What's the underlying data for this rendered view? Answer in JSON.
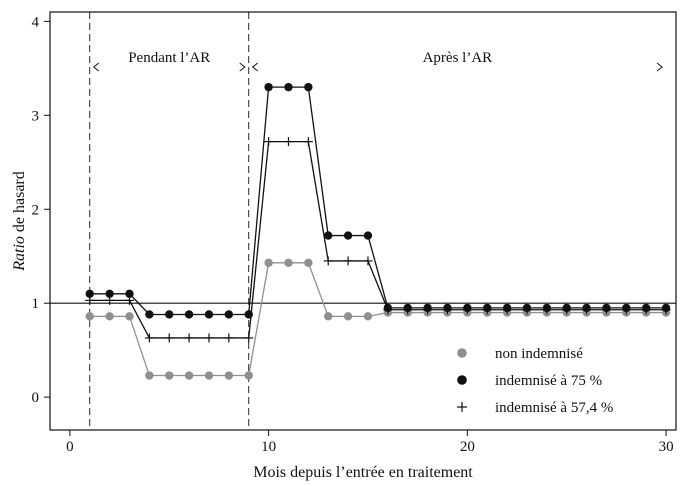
{
  "chart_data": {
    "type": "line",
    "xlabel": "Mois depuis l’entrée en traitement",
    "ylabel_italic": "Ratio",
    "ylabel_rest": " de hasard",
    "xlim": [
      -1,
      30.5
    ],
    "ylim": [
      -0.35,
      4.1
    ],
    "x_ticks": [
      0,
      10,
      20,
      30
    ],
    "y_ticks": [
      0,
      1,
      2,
      3,
      4
    ],
    "reference_line_y": 1,
    "vlines": [
      1,
      9
    ],
    "periods": [
      {
        "label": "Pendant l’AR",
        "from": 1,
        "to": 9
      },
      {
        "label": "Après l’AR",
        "from": 9,
        "to": 30
      }
    ],
    "legend_position": "bottom-right",
    "x": [
      1,
      2,
      3,
      4,
      5,
      6,
      7,
      8,
      9,
      10,
      11,
      12,
      13,
      14,
      15,
      16,
      17,
      18,
      19,
      20,
      21,
      22,
      23,
      24,
      25,
      26,
      27,
      28,
      29,
      30
    ],
    "series": [
      {
        "name": "non indemnisé",
        "marker": "circle",
        "color": "#8f8f8f",
        "values": [
          0.86,
          0.86,
          0.86,
          0.23,
          0.23,
          0.23,
          0.23,
          0.23,
          0.23,
          1.43,
          1.43,
          1.43,
          0.86,
          0.86,
          0.86,
          0.9,
          0.9,
          0.9,
          0.9,
          0.9,
          0.9,
          0.9,
          0.9,
          0.9,
          0.9,
          0.9,
          0.9,
          0.9,
          0.9,
          0.9
        ]
      },
      {
        "name": "indemnisé à 75 %",
        "marker": "circle",
        "color": "#111111",
        "values": [
          1.1,
          1.1,
          1.1,
          0.88,
          0.88,
          0.88,
          0.88,
          0.88,
          0.88,
          3.3,
          3.3,
          3.3,
          1.72,
          1.72,
          1.72,
          0.95,
          0.95,
          0.95,
          0.95,
          0.95,
          0.95,
          0.95,
          0.95,
          0.95,
          0.95,
          0.95,
          0.95,
          0.95,
          0.95,
          0.95
        ]
      },
      {
        "name": "indemnisé à 57,4 %",
        "marker": "plus",
        "color": "#111111",
        "values": [
          1.03,
          1.03,
          1.03,
          0.63,
          0.63,
          0.63,
          0.63,
          0.63,
          0.63,
          2.72,
          2.72,
          2.72,
          1.45,
          1.45,
          1.45,
          0.93,
          0.93,
          0.93,
          0.93,
          0.93,
          0.93,
          0.93,
          0.93,
          0.93,
          0.93,
          0.93,
          0.93,
          0.93,
          0.93,
          0.93
        ]
      }
    ]
  }
}
